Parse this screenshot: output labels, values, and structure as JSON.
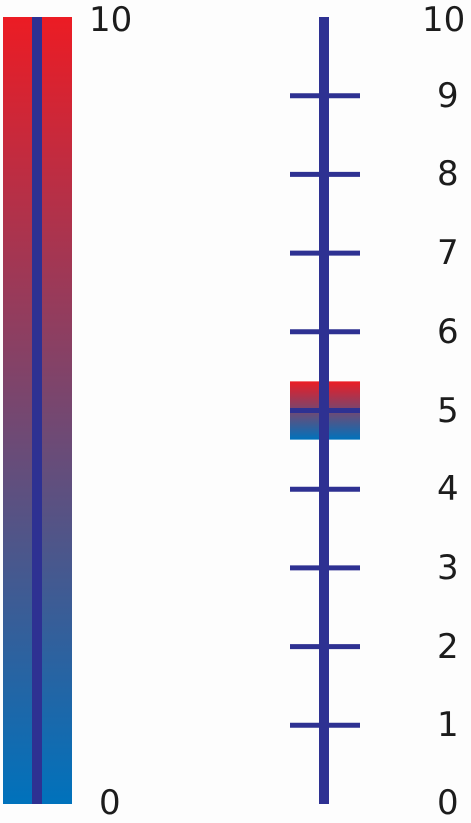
{
  "left_scale": {
    "max_label": "10",
    "min_label": "0",
    "gradient_top_color": "#ec1c24",
    "gradient_bottom_color": "#0072bc",
    "line_color": "#2e3192"
  },
  "right_scale": {
    "tick_labels": [
      "0",
      "1",
      "2",
      "3",
      "4",
      "5",
      "6",
      "7",
      "8",
      "9",
      "10"
    ],
    "range": [
      0,
      10
    ],
    "highlight_band": [
      4.63,
      5.37
    ],
    "line_color": "#2e3192"
  }
}
